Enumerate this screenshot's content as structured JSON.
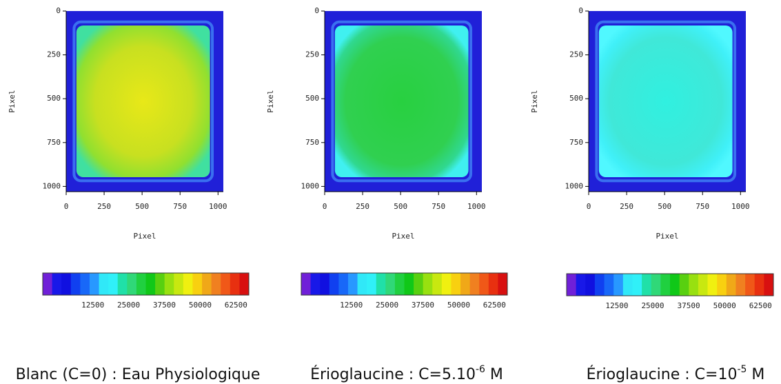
{
  "chart_data": [
    {
      "type": "heatmap",
      "xlabel": "Pixel",
      "ylabel": "Pixel",
      "xlim": [
        0,
        1035
      ],
      "ylim": [
        0,
        1030
      ],
      "xticks": [
        0,
        250,
        500,
        750,
        1000
      ],
      "yticks": [
        0,
        250,
        500,
        750,
        1000
      ],
      "clim": [
        -5000,
        67000
      ],
      "cticks": [
        12500,
        25000,
        37500,
        50000,
        62500
      ],
      "caption": [
        "Blanc (C=0) : Eau Physiologique"
      ]
    },
    {
      "type": "heatmap",
      "xlabel": "Pixel",
      "ylabel": "Pixel",
      "xlim": [
        0,
        1035
      ],
      "ylim": [
        0,
        1030
      ],
      "xticks": [
        0,
        250,
        500,
        750,
        1000
      ],
      "yticks": [
        0,
        250,
        500,
        750,
        1000
      ],
      "clim": [
        -5000,
        67000
      ],
      "cticks": [
        12500,
        25000,
        37500,
        50000,
        62500
      ],
      "caption": [
        "Érioglaucine : C=5.10",
        "-6",
        " M"
      ]
    },
    {
      "type": "heatmap",
      "xlabel": "Pixel",
      "ylabel": "Pixel",
      "xlim": [
        0,
        1035
      ],
      "ylim": [
        0,
        1030
      ],
      "xticks": [
        0,
        250,
        500,
        750,
        1000
      ],
      "yticks": [
        0,
        250,
        500,
        750,
        1000
      ],
      "clim": [
        -5000,
        67000
      ],
      "cticks": [
        12500,
        25000,
        37500,
        50000,
        62500
      ],
      "caption": [
        "Érioglaucine : C=10",
        "-5",
        " M"
      ]
    }
  ]
}
